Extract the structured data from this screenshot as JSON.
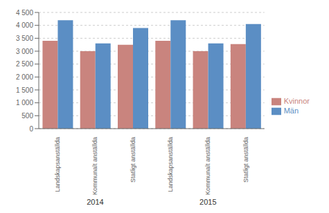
{
  "chart_data": {
    "type": "bar",
    "categories": [
      "Landskapsanställda",
      "Kommunalt anställda",
      "Statligt anställda",
      "Landskapsanställda",
      "Kommunalt anställda",
      "Statligt anställda"
    ],
    "category_groups": [
      {
        "label": "2014",
        "count": 3
      },
      {
        "label": "2015",
        "count": 3
      }
    ],
    "series": [
      {
        "name": "Kvinnor",
        "color": "#c9847e",
        "values": [
          3400,
          3000,
          3250,
          3400,
          3000,
          3275
        ]
      },
      {
        "name": "Män",
        "color": "#5b8ec4",
        "values": [
          4200,
          3300,
          3900,
          4200,
          3300,
          4050
        ]
      }
    ],
    "ylim": [
      0,
      4500
    ],
    "yticks": [
      0,
      500,
      {
        "value": 1000,
        "label": "1 000"
      },
      {
        "value": 1500,
        "label": "1 500"
      },
      {
        "value": 2000,
        "label": "2 000"
      },
      {
        "value": 2500,
        "label": "2 500"
      },
      {
        "value": 3000,
        "label": "3 000"
      },
      {
        "value": 3500,
        "label": "3 500"
      },
      {
        "value": 4000,
        "label": "4 000"
      },
      {
        "value": 4500,
        "label": "4 500"
      }
    ],
    "grid": true,
    "legend": "right"
  }
}
